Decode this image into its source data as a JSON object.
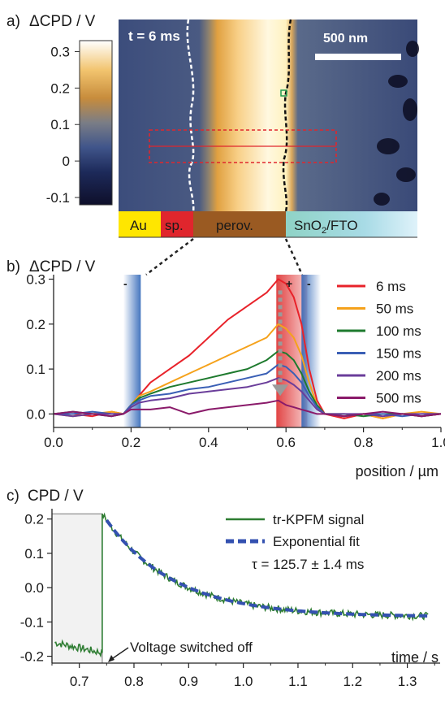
{
  "panel_a": {
    "label": "a)",
    "quantity": "ΔCPD / V",
    "time_label": "t = 6 ms",
    "scalebar_label": "500 nm",
    "colorbar_ticks": [
      "0.3",
      "0.2",
      "0.1",
      "0",
      "-0.1"
    ],
    "colorbar_values": [
      0.3,
      0.2,
      0.1,
      0,
      -0.1
    ],
    "colorbar_range": [
      -0.12,
      0.33
    ],
    "colors": {
      "background_blue": "#3e4f7c",
      "bright": "#fff6c8",
      "dark": "#12132e",
      "accent": "#e8a84a"
    },
    "layers": [
      {
        "label": "Au",
        "sub": "",
        "color": "#ffe600"
      },
      {
        "label": "sp.",
        "sub": "",
        "color": "#e0262d"
      },
      {
        "label": "perov.",
        "sub": "",
        "color": "#9a5a22"
      },
      {
        "label": "SnO",
        "sub": "2",
        "rest": "/FTO",
        "color": "#8fd3c6"
      }
    ]
  },
  "chart_data": [
    {
      "type": "line",
      "panel": "b)",
      "ylabel": "ΔCPD / V",
      "xlabel": "position / µm",
      "xlim": [
        0.0,
        1.0
      ],
      "ylim": [
        -0.03,
        0.31
      ],
      "xticks": [
        "0.0",
        "0.2",
        "0.4",
        "0.6",
        "0.8",
        "1.0"
      ],
      "xtick_values": [
        0.0,
        0.2,
        0.4,
        0.6,
        0.8,
        1.0
      ],
      "yticks": [
        "0.0",
        "0.1",
        "0.2",
        "0.3"
      ],
      "ytick_values": [
        0.0,
        0.1,
        0.2,
        0.3
      ],
      "legend_position": "top-right",
      "annotations": {
        "minus_left": "-",
        "plus": "+",
        "minus_right": "-"
      },
      "bands": [
        {
          "x": [
            0.18,
            0.225
          ],
          "color": "#2f66b7"
        },
        {
          "x": [
            0.575,
            0.655
          ],
          "color": "#e03a3a"
        },
        {
          "x": [
            0.64,
            0.69
          ],
          "color": "#2f66b7"
        }
      ],
      "arrow": {
        "x": 0.585,
        "y_from": 0.275,
        "y_to": 0.04,
        "color": "#9a9a9a"
      },
      "series": [
        {
          "name": "6 ms",
          "color": "#e8222a",
          "x": [
            0,
            0.05,
            0.1,
            0.15,
            0.18,
            0.2,
            0.22,
            0.25,
            0.3,
            0.35,
            0.4,
            0.45,
            0.5,
            0.55,
            0.58,
            0.6,
            0.62,
            0.64,
            0.66,
            0.68,
            0.7,
            0.75,
            0.8,
            0.85,
            0.9,
            0.95,
            1.0
          ],
          "y": [
            0,
            0,
            -0.005,
            0.005,
            0.0,
            0.02,
            0.04,
            0.07,
            0.1,
            0.13,
            0.17,
            0.21,
            0.24,
            0.27,
            0.3,
            0.29,
            0.26,
            0.2,
            0.1,
            0.03,
            0.0,
            -0.01,
            0,
            -0.01,
            0,
            -0.005,
            0
          ]
        },
        {
          "name": "50 ms",
          "color": "#f5a21b",
          "x": [
            0,
            0.05,
            0.1,
            0.15,
            0.18,
            0.2,
            0.22,
            0.25,
            0.3,
            0.35,
            0.4,
            0.45,
            0.5,
            0.55,
            0.58,
            0.6,
            0.62,
            0.64,
            0.66,
            0.68,
            0.7,
            0.75,
            0.8,
            0.85,
            0.9,
            0.95,
            1.0
          ],
          "y": [
            0,
            -0.005,
            0,
            0.005,
            0.0,
            0.02,
            0.04,
            0.05,
            0.07,
            0.09,
            0.11,
            0.13,
            0.15,
            0.17,
            0.2,
            0.19,
            0.17,
            0.13,
            0.07,
            0.02,
            0.0,
            -0.005,
            0,
            -0.01,
            0,
            0.005,
            0
          ]
        },
        {
          "name": "100 ms",
          "color": "#1e7a2e",
          "x": [
            0,
            0.05,
            0.1,
            0.15,
            0.18,
            0.2,
            0.22,
            0.25,
            0.3,
            0.35,
            0.4,
            0.45,
            0.5,
            0.55,
            0.58,
            0.6,
            0.62,
            0.64,
            0.66,
            0.68,
            0.7,
            0.75,
            0.8,
            0.85,
            0.9,
            0.95,
            1.0
          ],
          "y": [
            0,
            0.005,
            0,
            -0.005,
            0.0,
            0.02,
            0.035,
            0.045,
            0.06,
            0.07,
            0.08,
            0.09,
            0.1,
            0.12,
            0.14,
            0.135,
            0.12,
            0.09,
            0.05,
            0.02,
            0.0,
            0,
            -0.005,
            0,
            0,
            -0.005,
            0
          ]
        },
        {
          "name": "150 ms",
          "color": "#3a5fb5",
          "x": [
            0,
            0.05,
            0.1,
            0.15,
            0.18,
            0.2,
            0.22,
            0.25,
            0.3,
            0.35,
            0.4,
            0.45,
            0.5,
            0.55,
            0.58,
            0.6,
            0.62,
            0.64,
            0.66,
            0.68,
            0.7,
            0.75,
            0.8,
            0.85,
            0.9,
            0.95,
            1.0
          ],
          "y": [
            0,
            0,
            0.005,
            0,
            0.0,
            0.02,
            0.03,
            0.04,
            0.045,
            0.055,
            0.06,
            0.07,
            0.08,
            0.09,
            0.11,
            0.105,
            0.09,
            0.07,
            0.04,
            0.015,
            0.0,
            -0.005,
            0,
            0,
            -0.005,
            0,
            0
          ]
        },
        {
          "name": "200 ms",
          "color": "#6a3d9a",
          "x": [
            0,
            0.05,
            0.1,
            0.15,
            0.18,
            0.2,
            0.22,
            0.25,
            0.3,
            0.35,
            0.4,
            0.45,
            0.5,
            0.55,
            0.58,
            0.6,
            0.62,
            0.64,
            0.66,
            0.68,
            0.7,
            0.75,
            0.8,
            0.85,
            0.9,
            0.95,
            1.0
          ],
          "y": [
            0,
            -0.005,
            0,
            0,
            0.0,
            0.015,
            0.025,
            0.03,
            0.035,
            0.045,
            0.05,
            0.055,
            0.06,
            0.07,
            0.08,
            0.075,
            0.065,
            0.05,
            0.03,
            0.01,
            0.0,
            0,
            0,
            -0.005,
            0,
            0,
            0
          ]
        },
        {
          "name": "500 ms",
          "color": "#8a1a6a",
          "x": [
            0,
            0.05,
            0.1,
            0.15,
            0.18,
            0.2,
            0.22,
            0.25,
            0.3,
            0.35,
            0.4,
            0.45,
            0.5,
            0.55,
            0.58,
            0.6,
            0.62,
            0.64,
            0.66,
            0.68,
            0.7,
            0.75,
            0.8,
            0.85,
            0.9,
            0.95,
            1.0
          ],
          "y": [
            0,
            0.005,
            0,
            -0.005,
            0.0,
            0.01,
            0.01,
            0.01,
            0.015,
            0.0,
            0.01,
            0.015,
            0.02,
            0.025,
            0.03,
            0.02,
            0.015,
            0.01,
            0.005,
            0.0,
            0.0,
            -0.005,
            0,
            0.005,
            0,
            -0.005,
            0
          ]
        }
      ]
    },
    {
      "type": "line",
      "panel": "c)",
      "ylabel": "CPD / V",
      "xlabel": "time / s",
      "xlim": [
        0.65,
        1.36
      ],
      "ylim": [
        -0.22,
        0.23
      ],
      "xticks": [
        "0.7",
        "0.8",
        "0.9",
        "1.0",
        "1.1",
        "1.2",
        "1.3"
      ],
      "xtick_values": [
        0.7,
        0.8,
        0.9,
        1.0,
        1.1,
        1.2,
        1.3
      ],
      "yticks": [
        "0.2",
        "0.1",
        "0.0",
        "-0.1",
        "-0.2"
      ],
      "ytick_values": [
        0.2,
        0.1,
        0.0,
        -0.1,
        -0.2
      ],
      "legend_position": "top-right",
      "shaded_region": [
        0.65,
        0.742
      ],
      "annotation": {
        "text": "Voltage switched off",
        "x": 0.742,
        "y": -0.205
      },
      "fit_note": "τ = 125.7 ± 1.4 ms",
      "series": [
        {
          "name": "tr-KPFM signal",
          "color": "#2e7d32",
          "pre_switch": {
            "x_start": 0.655,
            "x_end": 0.742,
            "y_start": -0.16,
            "y_end": -0.19
          },
          "switch_time": 0.742,
          "peak": 0.215,
          "baseline": -0.085,
          "tau_s": 0.1257,
          "x_end": 1.34
        },
        {
          "name": "Exponential fit",
          "color": "#3451b0",
          "style": "dashed",
          "x_start": 0.75,
          "x_end": 1.34
        }
      ]
    }
  ]
}
